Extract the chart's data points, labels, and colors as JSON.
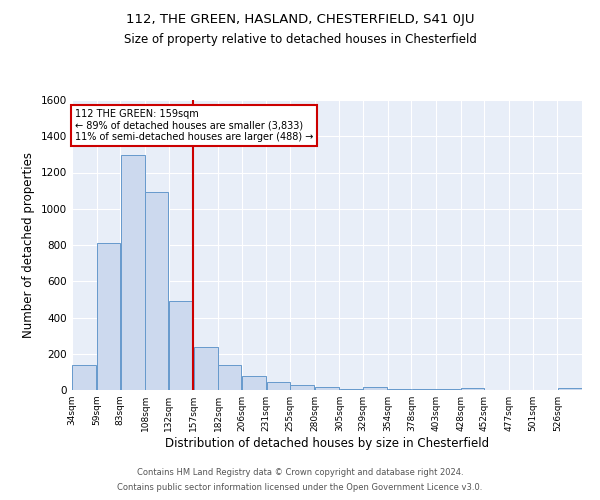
{
  "title1": "112, THE GREEN, HASLAND, CHESTERFIELD, S41 0JU",
  "title2": "Size of property relative to detached houses in Chesterfield",
  "xlabel": "Distribution of detached houses by size in Chesterfield",
  "ylabel": "Number of detached properties",
  "footer1": "Contains HM Land Registry data © Crown copyright and database right 2024.",
  "footer2": "Contains public sector information licensed under the Open Government Licence v3.0.",
  "annotation_line1": "112 THE GREEN: 159sqm",
  "annotation_line2": "← 89% of detached houses are smaller (3,833)",
  "annotation_line3": "11% of semi-detached houses are larger (488) →",
  "bar_color": "#ccd9ee",
  "bar_edge_color": "#6699cc",
  "vline_color": "#cc0000",
  "background_color": "#e8eef8",
  "categories": [
    "34sqm",
    "59sqm",
    "83sqm",
    "108sqm",
    "132sqm",
    "157sqm",
    "182sqm",
    "206sqm",
    "231sqm",
    "255sqm",
    "280sqm",
    "305sqm",
    "329sqm",
    "354sqm",
    "378sqm",
    "403sqm",
    "428sqm",
    "452sqm",
    "477sqm",
    "501sqm",
    "526sqm"
  ],
  "values": [
    140,
    810,
    1295,
    1095,
    490,
    235,
    140,
    75,
    45,
    25,
    15,
    5,
    15,
    5,
    5,
    5,
    10,
    0,
    0,
    0,
    10
  ],
  "bin_edges": [
    34,
    59,
    83,
    108,
    132,
    157,
    182,
    206,
    231,
    255,
    280,
    305,
    329,
    354,
    378,
    403,
    428,
    452,
    477,
    501,
    526,
    551
  ],
  "ylim": [
    0,
    1600
  ],
  "yticks": [
    0,
    200,
    400,
    600,
    800,
    1000,
    1200,
    1400,
    1600
  ],
  "vline_x": 157
}
